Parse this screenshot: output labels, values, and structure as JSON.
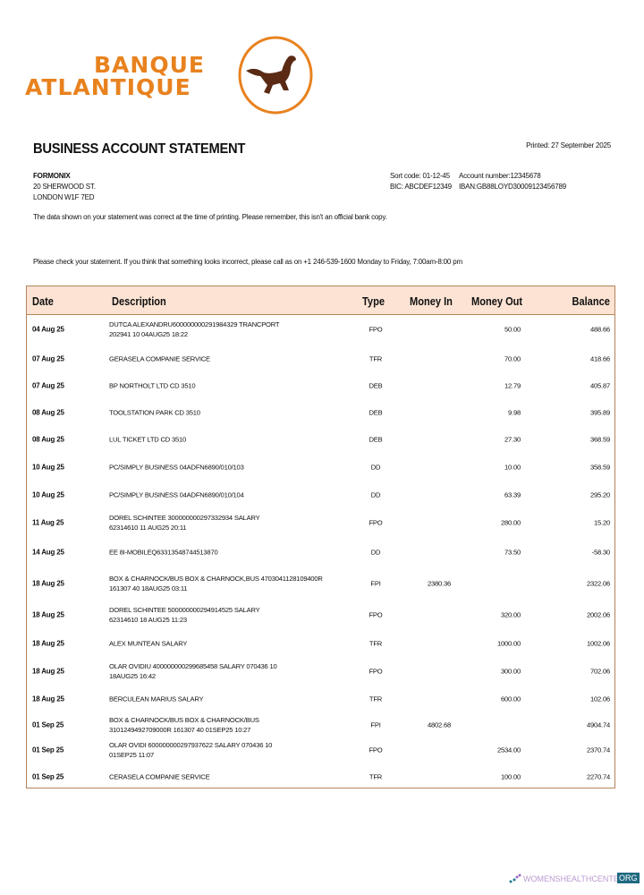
{
  "logo": {
    "line1": "BANQUE",
    "line2": "ATLANTIQUE",
    "colors": {
      "brand": "#e8821e",
      "horse": "#5a2a14"
    }
  },
  "header": {
    "title": "BUSINESS ACCOUNT STATEMENT",
    "printed": "Printed: 27 September 2025"
  },
  "customer": {
    "name": "FORMONIX",
    "address1": "20 SHERWOOD ST.",
    "address2": "LONDON W1F 7ED"
  },
  "account": {
    "sort_code": "Sort code: 01-12-45",
    "account_number": "Account number:12345678",
    "bic": "BIC: ABCDEF12349",
    "iban": "IBAN:GB88LOYD30009123456789"
  },
  "notes": {
    "disclaimer": "The data shown on your statement was correct at the time of printing. Please remember, this isn't an official bank copy.",
    "contact": "Please check your statement. If you think that something looks incorrect, please call as on +1 246-539-1600 Monday to Friday, 7:00am-8:00 pm"
  },
  "table": {
    "header_color": "#fce3d3",
    "columns": [
      "Date",
      "Description",
      "Type",
      "Money In",
      "Money Out",
      "Balance"
    ],
    "rows": [
      {
        "date": "04 Aug 25",
        "desc1": "DUTCA ALEXANDRU600000000291984329 TRANCPORT",
        "desc2": "202941 10 04AUG25 18:22",
        "type": "FPO",
        "in": "",
        "out": "50.00",
        "bal": "488.66"
      },
      {
        "date": "07 Aug 25",
        "desc1": "GERASELA COMPANIE SERVICE",
        "desc2": "",
        "type": "TFR",
        "in": "",
        "out": "70.00",
        "bal": "418.66"
      },
      {
        "date": "07 Aug 25",
        "desc1": "BP NORTHOLT LTD CD 3510",
        "desc2": "",
        "type": "DEB",
        "in": "",
        "out": "12.79",
        "bal": "405.87"
      },
      {
        "date": "08 Aug 25",
        "desc1": "TOOLSTATION PARK CD 3510",
        "desc2": "",
        "type": "DEB",
        "in": "",
        "out": "9.98",
        "bal": "395.89"
      },
      {
        "date": "08 Aug 25",
        "desc1": "LUL TICKET LTD CD 3510",
        "desc2": "",
        "type": "DEB",
        "in": "",
        "out": "27.30",
        "bal": "368.59"
      },
      {
        "date": "10 Aug 25",
        "desc1": "PC/SIMPLY BUSINESS 04ADFN6890/010/103",
        "desc2": "",
        "type": "DD",
        "in": "",
        "out": "10.00",
        "bal": "358.59"
      },
      {
        "date": "10 Aug 25",
        "desc1": "PC/SIMPLY BUSINESS 04ADFN6890/010/104",
        "desc2": "",
        "type": "DD",
        "in": "",
        "out": "63.39",
        "bal": "295.20"
      },
      {
        "date": "11 Aug 25",
        "desc1": "DOREL SCHINTEE 300000000297332934 SALARY",
        "desc2": "62314610 11 AUG25 20:11",
        "type": "FPO",
        "in": "",
        "out": "280.00",
        "bal": "15.20"
      },
      {
        "date": "14 Aug 25",
        "desc1": "EE 8I-MOBILEQ63313548744513870",
        "desc2": "",
        "type": "DD",
        "in": "",
        "out": "73.50",
        "bal": "-58.30"
      },
      {
        "date": "18 Aug 25",
        "desc1": "BOX & CHARNOCK/BUS BOX & CHARNOCK,BUS 4703041128109400R",
        "desc2": "161307 40 18AUG25 03:11",
        "type": "FPI",
        "in": "2380.36",
        "out": "",
        "bal": "2322.06"
      },
      {
        "date": "18 Aug 25",
        "desc1": "DOREL SCHINTEE 500000000294914525 SALARY",
        "desc2": "62314610 18 AUG25 11:23",
        "type": "FPO",
        "in": "",
        "out": "320.00",
        "bal": "2002.06"
      },
      {
        "date": "18 Aug 25",
        "desc1": "ALEX MUNTEAN SALARY",
        "desc2": "",
        "type": "TFR",
        "in": "",
        "out": "1000.00",
        "bal": "1002.06"
      },
      {
        "date": "18 Aug 25",
        "desc1": "OLAR OVIDIU 400000000299685458 SALARY 070436 10",
        "desc2": "18AUG25 16:42",
        "type": "FPO",
        "in": "",
        "out": "300.00",
        "bal": "702.06"
      },
      {
        "date": "18 Aug 25",
        "desc1": "BERCULEAN MARIUS SALARY",
        "desc2": "",
        "type": "TFR",
        "in": "",
        "out": "600.00",
        "bal": "102.06"
      },
      {
        "date": "01 Sep 25",
        "desc1": "BOX & CHARNOCK/BUS BOX & CHARNOCK/BUS",
        "desc2": "3101249492709000R 161307 40 01SEP25 10:27",
        "type": "FPI",
        "in": "4802.68",
        "out": "",
        "bal": "4904.74"
      },
      {
        "date": "01 Sep 25",
        "desc1": "OLAR OVIDI 600000000297937622 SALARY 070436 10",
        "desc2": "01SEP25 11:07",
        "type": "FPO",
        "in": "",
        "out": "2534.00",
        "bal": "2370.74"
      },
      {
        "date": "01 Sep 25",
        "desc1": "CERASELA COMPANIE SERVICE",
        "desc2": "",
        "type": "TFR",
        "in": "",
        "out": "100.00",
        "bal": "2270.74"
      }
    ]
  },
  "watermark": {
    "text": "WOMENSHEALTHCENTER",
    "badge": "ORG"
  }
}
